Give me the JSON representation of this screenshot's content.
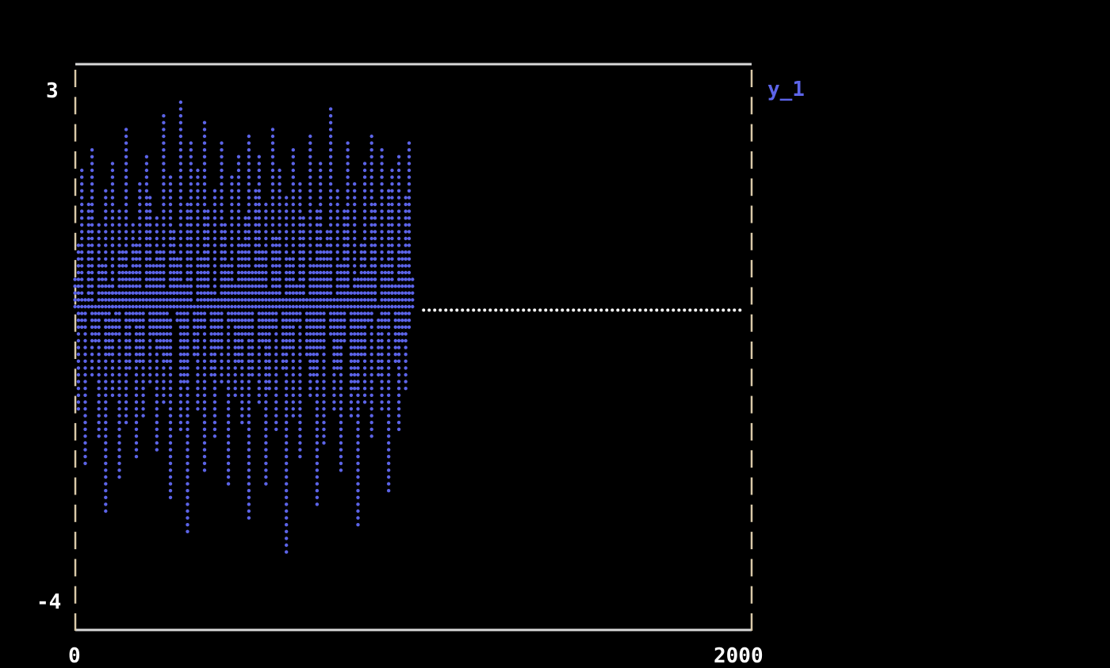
{
  "chart_data": {
    "type": "scatter",
    "title": "",
    "xlabel": "",
    "ylabel": "",
    "xlim": [
      0,
      2000
    ],
    "ylim": [
      -4,
      3
    ],
    "x_ticks": [
      "0",
      "2000"
    ],
    "y_ticks": [
      "3",
      "-4"
    ],
    "grid": false,
    "legend": "top-right",
    "series": [
      {
        "name": "y_1",
        "color": "#5c64e8",
        "x_start": 0,
        "x_step": 5,
        "values": [
          0.42,
          -1.31,
          0.87,
          1.92,
          -0.23,
          0.11,
          -2.14,
          1.45,
          0.68,
          -0.92,
          2.21,
          -0.41,
          0.05,
          1.13,
          -1.77,
          0.59,
          -0.06,
          1.66,
          -2.71,
          0.33,
          -0.58,
          1.02,
          2.04,
          -1.12,
          0.24,
          -0.35,
          1.38,
          -2.29,
          0.77,
          0.16,
          -1.55,
          2.45,
          -0.81,
          0.49,
          1.21,
          -0.14,
          -2.03,
          0.91,
          1.73,
          -0.67,
          0.28,
          -1.46,
          2.12,
          0.02,
          -0.97,
          1.57,
          -0.31,
          0.63,
          -1.88,
          1.29,
          0.84,
          -0.49,
          2.63,
          -1.24,
          0.19,
          -0.73,
          1.81,
          -2.52,
          0.45,
          1.09,
          -0.18,
          0.72,
          2.87,
          -1.61,
          0.37,
          -1.02,
          1.47,
          -3.05,
          0.56,
          2.33,
          -0.62,
          0.09,
          1.94,
          -1.39,
          0.66,
          -0.27,
          2.58,
          -2.18,
          0.81,
          1.35,
          -0.88,
          0.21,
          1.68,
          -1.71,
          0.14,
          -0.52,
          2.26,
          -0.96,
          0.48,
          1.17,
          -2.41,
          0.62,
          -0.11,
          1.84,
          -1.19,
          0.31,
          2.07,
          -0.69,
          0.93,
          -1.58,
          1.26,
          -0.36,
          2.39,
          -2.87,
          0.52,
          -0.85,
          1.61,
          0.07,
          -1.27,
          2.14,
          -0.44,
          0.75,
          -2.36,
          1.41,
          0.26,
          -1.08,
          2.51,
          -0.21,
          0.97,
          -1.67,
          0.39,
          1.88,
          -0.79,
          0.12,
          -3.31,
          1.52,
          0.69,
          -0.55,
          2.18,
          -1.44,
          0.34,
          -0.16,
          1.77,
          -2.05,
          0.88,
          1.24,
          -0.63,
          0.18,
          2.41,
          -1.15,
          0.57,
          -0.93,
          1.36,
          -2.62,
          0.27,
          2.03,
          -0.47,
          0.83,
          -1.83,
          1.11,
          0.46,
          -0.29,
          2.71,
          -1.36,
          0.15,
          -0.77,
          1.59,
          -2.23,
          0.64,
          1.31,
          -0.38,
          0.94,
          2.29,
          -1.49,
          0.22,
          -1.05,
          1.72,
          -2.97,
          0.41,
          0.86,
          -0.58,
          1.99,
          -1.22,
          0.53,
          -0.12,
          2.36,
          -1.74,
          0.71,
          1.43,
          -0.84,
          0.08,
          2.17,
          -1.33,
          0.61,
          -0.26,
          1.64,
          -2.44,
          0.36,
          1.96,
          -0.71,
          0.29,
          -1.63,
          2.09,
          -0.43,
          0.79,
          -1.11,
          1.51,
          -0.19,
          2.33,
          0.44
        ]
      },
      {
        "color": "#ffffff",
        "x": [
          1030,
          2000
        ],
        "values": [
          0,
          0
        ]
      }
    ]
  }
}
